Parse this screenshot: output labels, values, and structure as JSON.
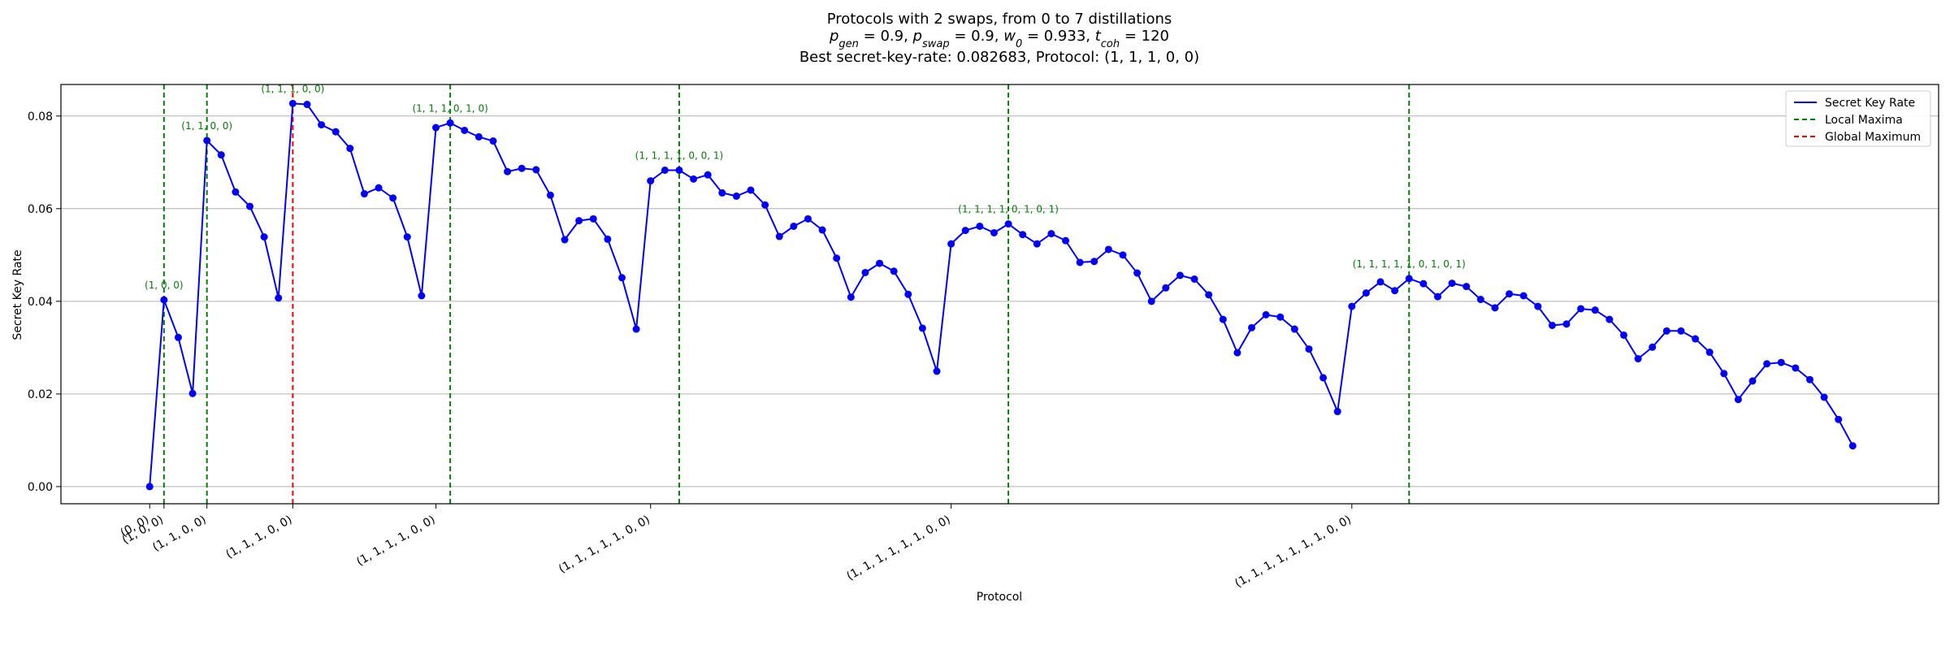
{
  "chart_data": {
    "type": "line",
    "title_lines": [
      "Protocols with 2 swaps, from 0 to 7 distillations",
      "p_gen = 0.9, p_swap = 0.9, w_0 = 0.933, t_coh = 120",
      "Best secret-key-rate: 0.082683, Protocol: (1, 1, 1, 0, 0)"
    ],
    "title_params": [
      {
        "sym": "p",
        "sub": "gen",
        "val": "0.9"
      },
      {
        "sym": "p",
        "sub": "swap",
        "val": "0.9"
      },
      {
        "sym": "w",
        "sub": "0",
        "val": "0.933"
      },
      {
        "sym": "t",
        "sub": "coh",
        "val": "120"
      }
    ],
    "xlabel": "Protocol",
    "ylabel": "Secret Key Rate",
    "ylim": [
      -0.0037,
      0.0868
    ],
    "yticks": [
      0.0,
      0.02,
      0.04,
      0.06,
      0.08
    ],
    "ytick_labels": [
      "0.00",
      "0.02",
      "0.04",
      "0.06",
      "0.08"
    ],
    "grid_y": true,
    "x_index_range": [
      -6.2,
      125.0
    ],
    "xtick_labels": [
      {
        "index": 0,
        "label": "(0, 0)"
      },
      {
        "index": 1,
        "label": "(1, 0, 0)"
      },
      {
        "index": 4,
        "label": "(1, 1, 0, 0)"
      },
      {
        "index": 10,
        "label": "(1, 1, 1, 0, 0)"
      },
      {
        "index": 20,
        "label": "(1, 1, 1, 1, 0, 0)"
      },
      {
        "index": 35,
        "label": "(1, 1, 1, 1, 1, 0, 0)"
      },
      {
        "index": 56,
        "label": "(1, 1, 1, 1, 1, 1, 0, 0)"
      },
      {
        "index": 84,
        "label": "(1, 1, 1, 1, 1, 1, 1, 0, 0)"
      }
    ],
    "series": [
      {
        "name": "Secret Key Rate",
        "color": "#0000ff",
        "values": [
          0.0,
          0.0403,
          0.0322,
          0.0201,
          0.0747,
          0.0716,
          0.0636,
          0.0605,
          0.0539,
          0.0407,
          0.0827,
          0.0825,
          0.0781,
          0.0766,
          0.073,
          0.0632,
          0.0645,
          0.0623,
          0.0539,
          0.0412,
          0.0775,
          0.0785,
          0.0769,
          0.0755,
          0.0746,
          0.068,
          0.0687,
          0.0684,
          0.0629,
          0.0533,
          0.0574,
          0.0578,
          0.0534,
          0.0451,
          0.034,
          0.066,
          0.0683,
          0.0683,
          0.0664,
          0.0673,
          0.0634,
          0.0627,
          0.064,
          0.0608,
          0.054,
          0.0562,
          0.0578,
          0.0554,
          0.0493,
          0.0409,
          0.0462,
          0.0482,
          0.0465,
          0.0415,
          0.0342,
          0.0249,
          0.0524,
          0.0553,
          0.0562,
          0.0548,
          0.0567,
          0.0544,
          0.0524,
          0.0546,
          0.0531,
          0.0484,
          0.0486,
          0.0512,
          0.05,
          0.0461,
          0.04,
          0.0429,
          0.0456,
          0.0448,
          0.0414,
          0.0361,
          0.0289,
          0.0343,
          0.0371,
          0.0366,
          0.034,
          0.0297,
          0.0235,
          0.0162,
          0.0389,
          0.0418,
          0.0442,
          0.0423,
          0.0449,
          0.0438,
          0.041,
          0.0439,
          0.0432,
          0.0404,
          0.0386,
          0.0416,
          0.0412,
          0.0389,
          0.0348,
          0.0351,
          0.0384,
          0.0381,
          0.0361,
          0.0327,
          0.0276,
          0.0301,
          0.0336,
          0.0336,
          0.0319,
          0.029,
          0.0244,
          0.0188,
          0.0228,
          0.0265,
          0.0268,
          0.0256,
          0.0231,
          0.0193,
          0.0145,
          0.0088
        ]
      }
    ],
    "local_maxima": [
      {
        "index": 1,
        "label": "(1, 0, 0)"
      },
      {
        "index": 4,
        "label": "(1, 1, 0, 0)"
      },
      {
        "index": 21,
        "label": "(1, 1, 1, 0, 1, 0)"
      },
      {
        "index": 37,
        "label": "(1, 1, 1, 1, 0, 0, 1)"
      },
      {
        "index": 60,
        "label": "(1, 1, 1, 1, 0, 1, 0, 1)"
      },
      {
        "index": 88,
        "label": "(1, 1, 1, 1, 1, 0, 1, 0, 1)"
      }
    ],
    "global_maximum": {
      "index": 10,
      "label": "(1, 1, 1, 0, 0)"
    },
    "legend": {
      "placement": "top-right",
      "entries": [
        {
          "label": "Secret Key Rate",
          "color": "#0000ff",
          "style": "solid"
        },
        {
          "label": "Local Maxima",
          "color": "#008000",
          "style": "dashed"
        },
        {
          "label": "Global Maximum",
          "color": "#ff0000",
          "style": "dashed"
        }
      ]
    }
  }
}
